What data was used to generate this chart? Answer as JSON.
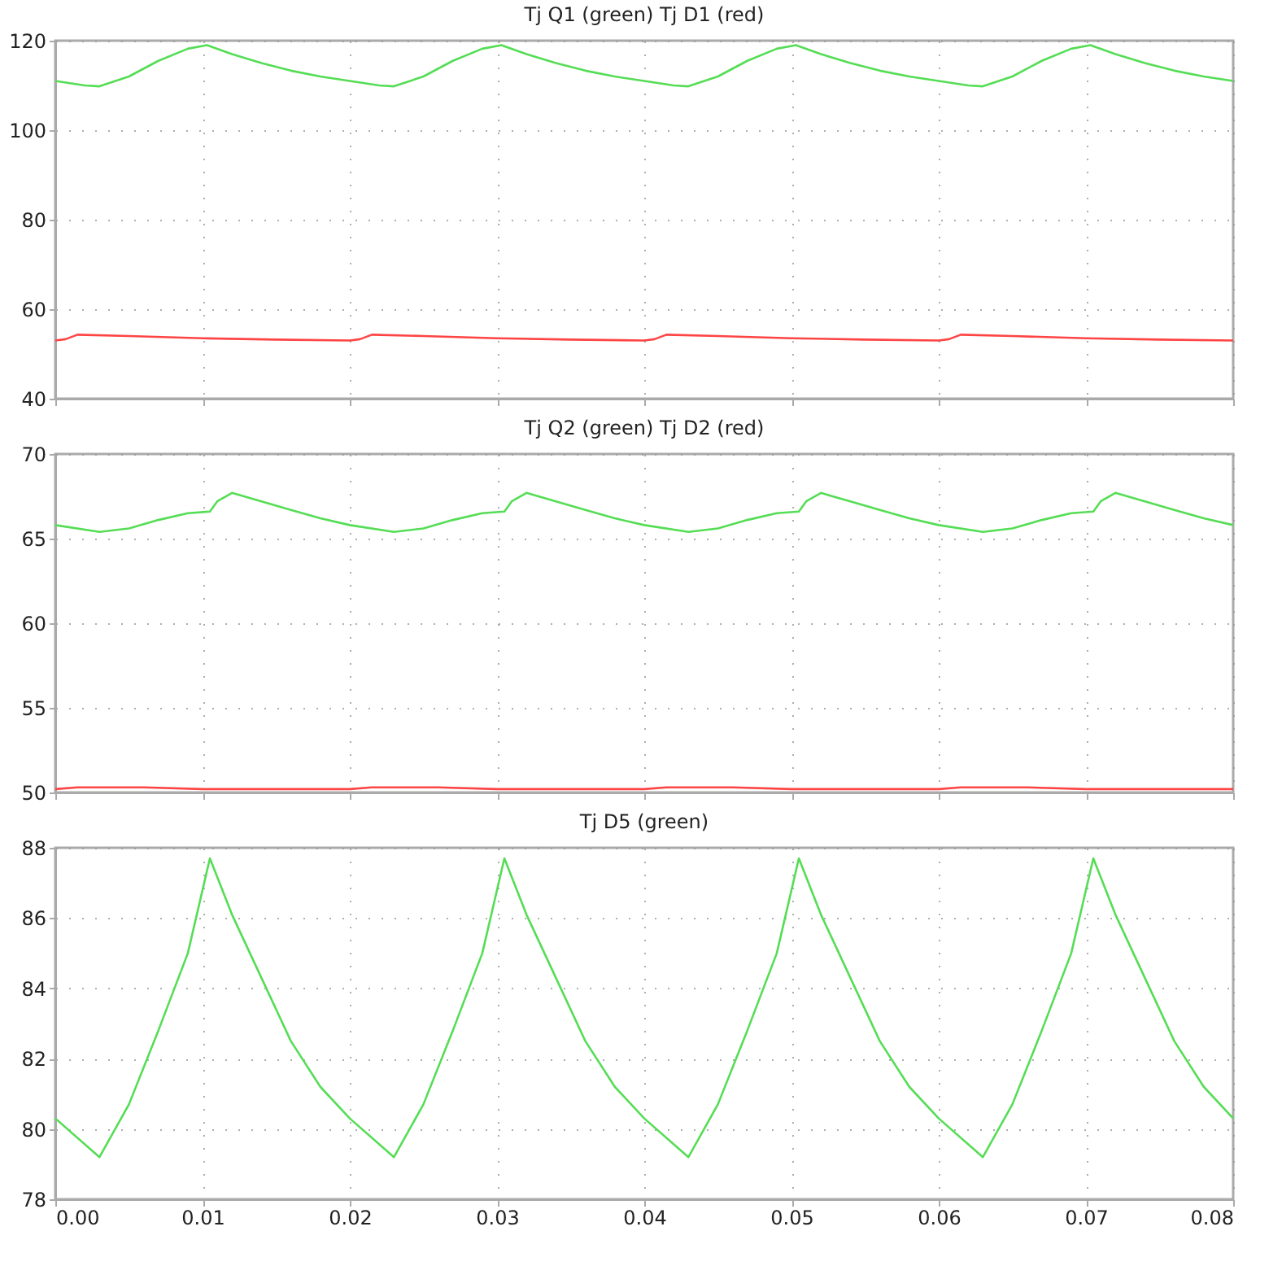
{
  "chart_data": [
    {
      "type": "line",
      "title": "Tj Q1 (green) Tj D1 (red)",
      "xlim": [
        0,
        0.08
      ],
      "xticks": [
        {
          "value": 0,
          "label": null
        },
        {
          "value": 0.01,
          "label": null
        },
        {
          "value": 0.02,
          "label": null
        },
        {
          "value": 0.03,
          "label": null
        },
        {
          "value": 0.04,
          "label": null
        },
        {
          "value": 0.05,
          "label": null
        },
        {
          "value": 0.06,
          "label": null
        },
        {
          "value": 0.07,
          "label": null
        },
        {
          "value": 0.08,
          "label": null
        }
      ],
      "ylim": [
        40,
        120
      ],
      "yticks": [
        40,
        60,
        80,
        100,
        120
      ],
      "grid": true,
      "tick_labels": "y",
      "series": [
        {
          "color": "#55dd55",
          "x": [
            0,
            0.002,
            0.003,
            0.005,
            0.007,
            0.009,
            0.0103,
            0.012,
            0.014,
            0.016,
            0.018,
            0.02,
            0.022,
            0.023,
            0.025,
            0.027,
            0.029,
            0.0303,
            0.032,
            0.034,
            0.036,
            0.038,
            0.04,
            0.042,
            0.043,
            0.045,
            0.047,
            0.049,
            0.0503,
            0.052,
            0.054,
            0.056,
            0.058,
            0.06,
            0.062,
            0.063,
            0.065,
            0.067,
            0.069,
            0.0703,
            0.072,
            0.074,
            0.076,
            0.078,
            0.08
          ],
          "values": [
            111,
            110,
            109.8,
            112,
            115.5,
            118.2,
            119,
            117,
            115,
            113.3,
            112,
            111,
            110,
            109.8,
            112,
            115.5,
            118.2,
            119,
            117,
            115,
            113.3,
            112,
            111,
            110,
            109.8,
            112,
            115.5,
            118.2,
            119,
            117,
            115,
            113.3,
            112,
            111,
            110,
            109.8,
            112,
            115.5,
            118.2,
            119,
            117,
            115,
            113.3,
            112,
            111
          ]
        },
        {
          "color": "#ff4444",
          "x": [
            0,
            0.0007,
            0.0015,
            0.005,
            0.01,
            0.015,
            0.02,
            0.0207,
            0.0215,
            0.025,
            0.03,
            0.035,
            0.04,
            0.0407,
            0.0415,
            0.045,
            0.05,
            0.055,
            0.06,
            0.0607,
            0.0615,
            0.065,
            0.07,
            0.075,
            0.08
          ],
          "values": [
            53,
            53.3,
            54.3,
            54,
            53.5,
            53.2,
            53,
            53.3,
            54.3,
            54,
            53.5,
            53.2,
            53,
            53.3,
            54.3,
            54,
            53.5,
            53.2,
            53,
            53.3,
            54.3,
            54,
            53.5,
            53.2,
            53
          ]
        }
      ]
    },
    {
      "type": "line",
      "title": "Tj Q2 (green) Tj D2 (red)",
      "xlim": [
        0,
        0.08
      ],
      "xticks": [
        {
          "value": 0,
          "label": null
        },
        {
          "value": 0.01,
          "label": null
        },
        {
          "value": 0.02,
          "label": null
        },
        {
          "value": 0.03,
          "label": null
        },
        {
          "value": 0.04,
          "label": null
        },
        {
          "value": 0.05,
          "label": null
        },
        {
          "value": 0.06,
          "label": null
        },
        {
          "value": 0.07,
          "label": null
        },
        {
          "value": 0.08,
          "label": null
        }
      ],
      "ylim": [
        50,
        70
      ],
      "yticks": [
        50,
        55,
        60,
        65,
        70
      ],
      "grid": true,
      "tick_labels": "y",
      "series": [
        {
          "color": "#55dd55",
          "x": [
            0,
            0.003,
            0.005,
            0.007,
            0.009,
            0.0105,
            0.011,
            0.012,
            0.014,
            0.016,
            0.018,
            0.02,
            0.023,
            0.025,
            0.027,
            0.029,
            0.0305,
            0.031,
            0.032,
            0.034,
            0.036,
            0.038,
            0.04,
            0.043,
            0.045,
            0.047,
            0.049,
            0.0505,
            0.051,
            0.052,
            0.054,
            0.056,
            0.058,
            0.06,
            0.063,
            0.065,
            0.067,
            0.069,
            0.0705,
            0.071,
            0.072,
            0.074,
            0.076,
            0.078,
            0.08
          ],
          "values": [
            65.8,
            65.4,
            65.6,
            66.1,
            66.5,
            66.6,
            67.2,
            67.7,
            67.2,
            66.7,
            66.2,
            65.8,
            65.4,
            65.6,
            66.1,
            66.5,
            66.6,
            67.2,
            67.7,
            67.2,
            66.7,
            66.2,
            65.8,
            65.4,
            65.6,
            66.1,
            66.5,
            66.6,
            67.2,
            67.7,
            67.2,
            66.7,
            66.2,
            65.8,
            65.4,
            65.6,
            66.1,
            66.5,
            66.6,
            67.2,
            67.7,
            67.2,
            66.7,
            66.2,
            65.8
          ]
        },
        {
          "color": "#ff4444",
          "x": [
            0,
            0.0015,
            0.003,
            0.006,
            0.01,
            0.015,
            0.02,
            0.0215,
            0.023,
            0.026,
            0.03,
            0.035,
            0.04,
            0.0415,
            0.043,
            0.046,
            0.05,
            0.055,
            0.06,
            0.0615,
            0.063,
            0.066,
            0.07,
            0.075,
            0.08
          ],
          "values": [
            50.2,
            50.3,
            50.3,
            50.3,
            50.2,
            50.2,
            50.2,
            50.3,
            50.3,
            50.3,
            50.2,
            50.2,
            50.2,
            50.3,
            50.3,
            50.3,
            50.2,
            50.2,
            50.2,
            50.3,
            50.3,
            50.3,
            50.2,
            50.2,
            50.2
          ]
        }
      ]
    },
    {
      "type": "line",
      "title": "Tj D5 (green)",
      "xlim": [
        0,
        0.08
      ],
      "xticks": [
        {
          "value": 0,
          "label": "0.00"
        },
        {
          "value": 0.01,
          "label": "0.01"
        },
        {
          "value": 0.02,
          "label": "0.02"
        },
        {
          "value": 0.03,
          "label": "0.03"
        },
        {
          "value": 0.04,
          "label": "0.04"
        },
        {
          "value": 0.05,
          "label": "0.05"
        },
        {
          "value": 0.06,
          "label": "0.06"
        },
        {
          "value": 0.07,
          "label": "0.07"
        },
        {
          "value": 0.08,
          "label": "0.08"
        }
      ],
      "ylim": [
        78,
        88
      ],
      "yticks": [
        78,
        80,
        82,
        84,
        86,
        88
      ],
      "grid": true,
      "series": [
        {
          "color": "#55dd55",
          "x": [
            0,
            0.003,
            0.005,
            0.007,
            0.009,
            0.0105,
            0.012,
            0.014,
            0.016,
            0.018,
            0.02,
            0.023,
            0.025,
            0.027,
            0.029,
            0.0305,
            0.032,
            0.034,
            0.036,
            0.038,
            0.04,
            0.043,
            0.045,
            0.047,
            0.049,
            0.0505,
            0.052,
            0.054,
            0.056,
            0.058,
            0.06,
            0.063,
            0.065,
            0.067,
            0.069,
            0.0705,
            0.072,
            0.074,
            0.076,
            0.078,
            0.08
          ],
          "values": [
            80.3,
            79.2,
            80.7,
            82.8,
            85,
            87.7,
            86.1,
            84.3,
            82.5,
            81.2,
            80.3,
            79.2,
            80.7,
            82.8,
            85,
            87.7,
            86.1,
            84.3,
            82.5,
            81.2,
            80.3,
            79.2,
            80.7,
            82.8,
            85,
            87.7,
            86.1,
            84.3,
            82.5,
            81.2,
            80.3,
            79.2,
            80.7,
            82.8,
            85,
            87.7,
            86.1,
            84.3,
            82.5,
            81.2,
            80.3
          ]
        }
      ]
    }
  ]
}
